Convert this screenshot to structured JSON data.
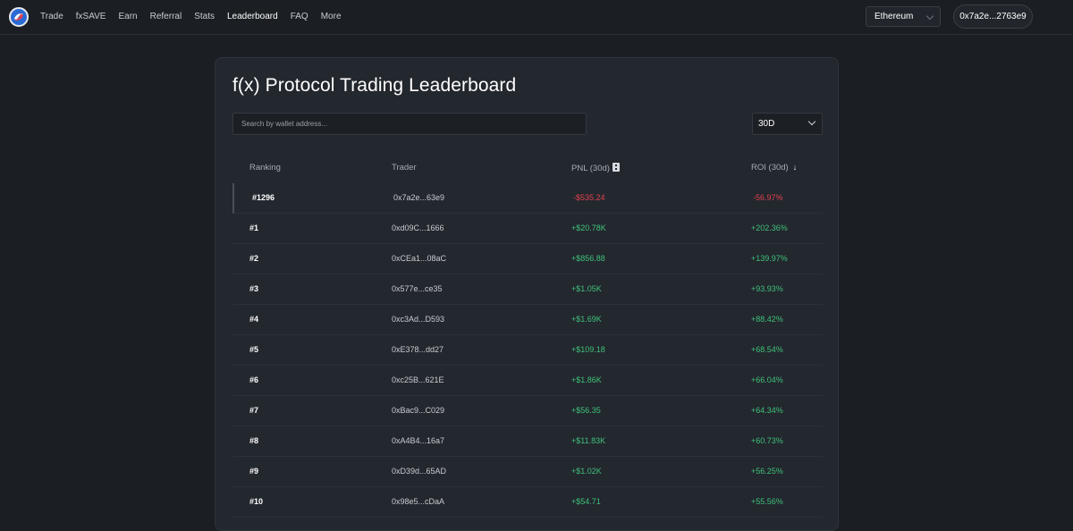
{
  "nav": {
    "links": [
      "Trade",
      "fxSAVE",
      "Earn",
      "Referral",
      "Stats",
      "Leaderboard",
      "FAQ",
      "More"
    ],
    "network": "Ethereum",
    "wallet": "0x7a2e...2763e9"
  },
  "page": {
    "title": "f(x) Protocol Trading Leaderboard",
    "search_placeholder": "Search by wallet address...",
    "period": "30D"
  },
  "table": {
    "headers": {
      "ranking": "Ranking",
      "trader": "Trader",
      "pnl": "PNL (30d)",
      "roi": "ROI (30d)"
    },
    "rows": [
      {
        "rank": "#1296",
        "trader": "0x7a2e...63e9",
        "pnl": "-$535.24",
        "roi": "-56.97%"
      },
      {
        "rank": "#1",
        "trader": "0xd09C...1666",
        "pnl": "+$20.78K",
        "roi": "+202.36%"
      },
      {
        "rank": "#2",
        "trader": "0xCEa1...08aC",
        "pnl": "+$856.88",
        "roi": "+139.97%"
      },
      {
        "rank": "#3",
        "trader": "0x577e...ce35",
        "pnl": "+$1.05K",
        "roi": "+93.93%"
      },
      {
        "rank": "#4",
        "trader": "0xc3Ad...D593",
        "pnl": "+$1.69K",
        "roi": "+88.42%"
      },
      {
        "rank": "#5",
        "trader": "0xE378...dd27",
        "pnl": "+$109.18",
        "roi": "+68.54%"
      },
      {
        "rank": "#6",
        "trader": "0xc25B...621E",
        "pnl": "+$1.86K",
        "roi": "+66.04%"
      },
      {
        "rank": "#7",
        "trader": "0xBac9...C029",
        "pnl": "+$56.35",
        "roi": "+64.34%"
      },
      {
        "rank": "#8",
        "trader": "0xA4B4...16a7",
        "pnl": "+$11.83K",
        "roi": "+60.73%"
      },
      {
        "rank": "#9",
        "trader": "0xD39d...65AD",
        "pnl": "+$1.02K",
        "roi": "+56.25%"
      },
      {
        "rank": "#10",
        "trader": "0x98e5...cDaA",
        "pnl": "+$54.71",
        "roi": "+55.56%"
      }
    ]
  },
  "colors": {
    "positive": "#3fc17a",
    "negative": "#e0424f",
    "background": "#1b1e23"
  }
}
